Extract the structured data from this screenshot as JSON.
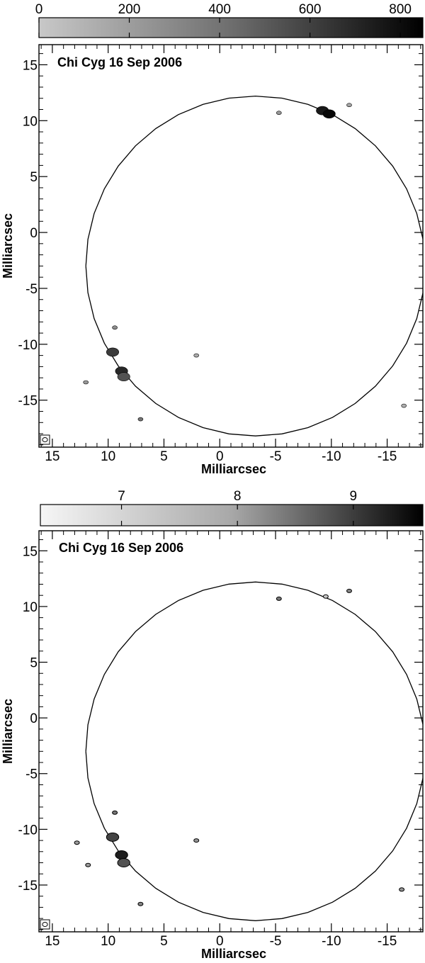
{
  "chart_data": [
    {
      "type": "heatmap",
      "title": "Chi Cyg  16 Sep 2006",
      "xlabel": "Milliarcsec",
      "ylabel": "Milliarcsec",
      "xlim": [
        16.2,
        -18.2
      ],
      "ylim": [
        -19.2,
        16.8
      ],
      "xticks": [
        15,
        10,
        5,
        0,
        -5,
        -10,
        -15
      ],
      "yticks": [
        15,
        10,
        5,
        0,
        -5,
        -10,
        -15
      ],
      "colorbar": {
        "min": 0,
        "max": 850,
        "ticks": [
          0,
          200,
          400,
          600,
          800
        ],
        "scale": "linear"
      },
      "ring": {
        "center": [
          -3.2,
          -3.0
        ],
        "radius": 15.2
      },
      "spots": [
        {
          "x": -9.2,
          "y": 10.9,
          "value": 750
        },
        {
          "x": -9.8,
          "y": 10.6,
          "value": 820
        },
        {
          "x": 9.6,
          "y": -10.7,
          "value": 600
        },
        {
          "x": 8.8,
          "y": -12.4,
          "value": 680
        },
        {
          "x": 8.6,
          "y": -12.9,
          "value": 500
        },
        {
          "x": 7.1,
          "y": -16.7,
          "value": 350
        },
        {
          "x": 9.4,
          "y": -8.5,
          "value": 250
        },
        {
          "x": 12.0,
          "y": -13.4,
          "value": 200
        },
        {
          "x": -5.3,
          "y": 10.7,
          "value": 200
        },
        {
          "x": -11.6,
          "y": 11.4,
          "value": 150
        },
        {
          "x": 2.1,
          "y": -11.0,
          "value": 120
        },
        {
          "x": -16.5,
          "y": -15.5,
          "value": 100
        }
      ]
    },
    {
      "type": "heatmap",
      "title": "Chi Cyg  16 Sep 2006",
      "xlabel": "Milliarcsec",
      "ylabel": "Milliarcsec",
      "xlim": [
        16.2,
        -18.2
      ],
      "ylim": [
        -19.2,
        16.8
      ],
      "xticks": [
        15,
        10,
        5,
        0,
        -5,
        -10,
        -15
      ],
      "yticks": [
        15,
        10,
        5,
        0,
        -5,
        -10,
        -15
      ],
      "colorbar": {
        "min": 6.3,
        "max": 9.6,
        "ticks": [
          7,
          8,
          9
        ],
        "scale": "log"
      },
      "ring": {
        "center": [
          -3.2,
          -3.0
        ],
        "radius": 15.2
      },
      "spots": [
        {
          "x": -9.5,
          "y": 10.9,
          "value": 6.9
        },
        {
          "x": 9.6,
          "y": -10.7,
          "value": 8.7
        },
        {
          "x": 8.8,
          "y": -12.3,
          "value": 9.2
        },
        {
          "x": 8.6,
          "y": -13.0,
          "value": 8.5
        },
        {
          "x": 9.4,
          "y": -8.5,
          "value": 8.0
        },
        {
          "x": 7.1,
          "y": -16.7,
          "value": 7.8
        },
        {
          "x": -5.3,
          "y": 10.7,
          "value": 8.0
        },
        {
          "x": -11.6,
          "y": 11.4,
          "value": 7.8
        },
        {
          "x": 2.1,
          "y": -11.0,
          "value": 7.6
        },
        {
          "x": 12.8,
          "y": -11.2,
          "value": 7.5
        },
        {
          "x": 11.8,
          "y": -13.2,
          "value": 7.5
        },
        {
          "x": -16.3,
          "y": -15.4,
          "value": 7.6
        }
      ]
    }
  ]
}
